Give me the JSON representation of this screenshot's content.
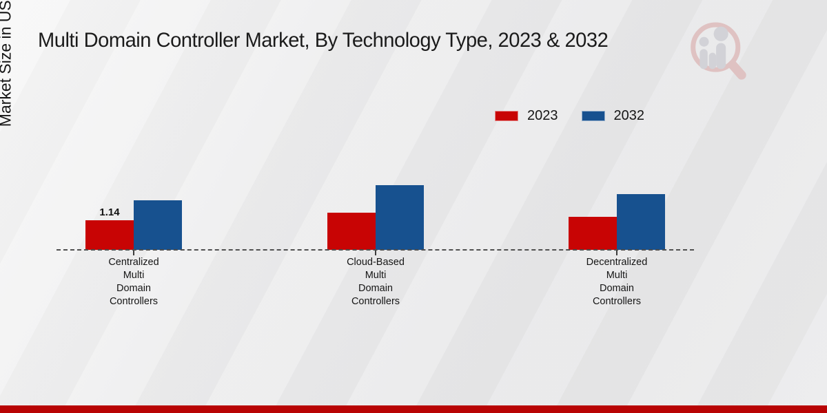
{
  "title": "Multi Domain Controller Market, By Technology Type, 2023 & 2032",
  "y_axis_label": "Market Size in USD Billion",
  "legend": {
    "items": [
      {
        "label": "2023",
        "color": "#c80404"
      },
      {
        "label": "2032",
        "color": "#17518f"
      }
    ]
  },
  "colors": {
    "series_2023": "#c80404",
    "series_2032": "#17518f",
    "bottom_strip": "#b80404",
    "baseline": "#4f4f4f",
    "background": "#eaeaeb"
  },
  "icons": {
    "watermark": "magnifier-bar-chart-logo-icon"
  },
  "chart_data": {
    "type": "bar",
    "title": "Multi Domain Controller Market, By Technology Type, 2023 & 2032",
    "categories": [
      "Centralized\nMulti\nDomain\nControllers",
      "Cloud-Based\nMulti\nDomain\nControllers",
      "Decentralized\nMulti\nDomain\nControllers"
    ],
    "series": [
      {
        "name": "2023",
        "color": "#c80404",
        "values": [
          1.14,
          1.43,
          1.26
        ]
      },
      {
        "name": "2032",
        "color": "#17518f",
        "values": [
          1.9,
          2.49,
          2.14
        ]
      }
    ],
    "data_labels": [
      {
        "series_index": 0,
        "category_index": 0,
        "text": "1.14"
      }
    ],
    "xlabel": "",
    "ylabel": "Market Size in USD Billion",
    "ylim": [
      0,
      2.8
    ],
    "grid": false,
    "y_axis_ticks_visible": false,
    "baseline_style": "dashed",
    "legend_position": "top-right"
  }
}
